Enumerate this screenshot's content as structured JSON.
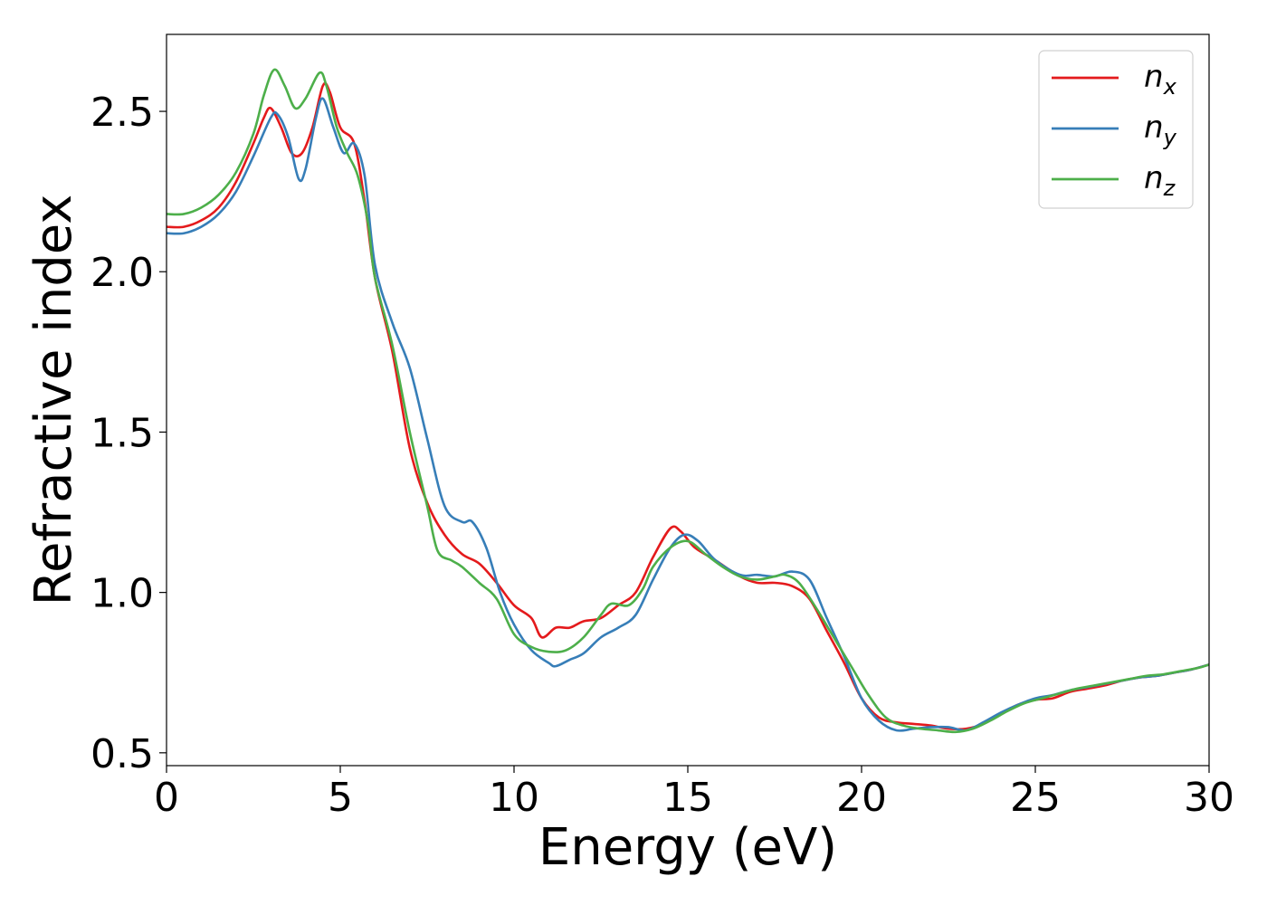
{
  "chart_data": {
    "type": "line",
    "title": "",
    "xlabel": "Energy (eV)",
    "ylabel": "Refractive index",
    "xlim": [
      0,
      30
    ],
    "ylim": [
      0.46,
      2.74
    ],
    "xticks": [
      0,
      5,
      10,
      15,
      20,
      25,
      30
    ],
    "xtick_labels": [
      "0",
      "5",
      "10",
      "15",
      "20",
      "25",
      "30"
    ],
    "yticks": [
      0.5,
      1.0,
      1.5,
      2.0,
      2.5
    ],
    "ytick_labels": [
      "0.5",
      "1.0",
      "1.5",
      "2.0",
      "2.5"
    ],
    "grid": false,
    "legend_position": "top-right",
    "series": [
      {
        "name": "n_x",
        "legend_main": "n",
        "legend_sub": "x",
        "color": "#e41a1c",
        "points": [
          [
            0,
            2.14
          ],
          [
            0.5,
            2.14
          ],
          [
            1,
            2.16
          ],
          [
            1.5,
            2.2
          ],
          [
            2,
            2.28
          ],
          [
            2.5,
            2.4
          ],
          [
            2.8,
            2.48
          ],
          [
            3.0,
            2.51
          ],
          [
            3.3,
            2.45
          ],
          [
            3.6,
            2.37
          ],
          [
            3.9,
            2.37
          ],
          [
            4.2,
            2.45
          ],
          [
            4.5,
            2.58
          ],
          [
            4.7,
            2.56
          ],
          [
            5.0,
            2.45
          ],
          [
            5.4,
            2.4
          ],
          [
            5.7,
            2.22
          ],
          [
            6.0,
            1.98
          ],
          [
            6.5,
            1.75
          ],
          [
            7.0,
            1.45
          ],
          [
            7.5,
            1.28
          ],
          [
            8.0,
            1.18
          ],
          [
            8.5,
            1.12
          ],
          [
            9.0,
            1.09
          ],
          [
            9.5,
            1.03
          ],
          [
            10.0,
            0.96
          ],
          [
            10.5,
            0.92
          ],
          [
            10.8,
            0.86
          ],
          [
            11.2,
            0.89
          ],
          [
            11.6,
            0.89
          ],
          [
            12.0,
            0.91
          ],
          [
            12.5,
            0.92
          ],
          [
            13.0,
            0.96
          ],
          [
            13.5,
            1.0
          ],
          [
            14.0,
            1.11
          ],
          [
            14.5,
            1.2
          ],
          [
            14.8,
            1.19
          ],
          [
            15.2,
            1.14
          ],
          [
            15.8,
            1.1
          ],
          [
            16.5,
            1.05
          ],
          [
            17.0,
            1.03
          ],
          [
            17.5,
            1.03
          ],
          [
            18.0,
            1.02
          ],
          [
            18.5,
            0.98
          ],
          [
            19.0,
            0.88
          ],
          [
            19.5,
            0.78
          ],
          [
            20.0,
            0.67
          ],
          [
            20.5,
            0.61
          ],
          [
            21.0,
            0.595
          ],
          [
            21.5,
            0.59
          ],
          [
            22.0,
            0.585
          ],
          [
            22.5,
            0.575
          ],
          [
            23.0,
            0.575
          ],
          [
            23.5,
            0.59
          ],
          [
            24.0,
            0.62
          ],
          [
            24.5,
            0.65
          ],
          [
            25.0,
            0.665
          ],
          [
            25.5,
            0.67
          ],
          [
            26.0,
            0.69
          ],
          [
            26.5,
            0.7
          ],
          [
            27.0,
            0.71
          ],
          [
            27.5,
            0.725
          ],
          [
            28.0,
            0.735
          ],
          [
            28.5,
            0.74
          ],
          [
            29.0,
            0.75
          ],
          [
            29.5,
            0.76
          ],
          [
            30.0,
            0.775
          ]
        ]
      },
      {
        "name": "n_y",
        "legend_main": "n",
        "legend_sub": "y",
        "color": "#377eb8",
        "points": [
          [
            0,
            2.12
          ],
          [
            0.5,
            2.12
          ],
          [
            1,
            2.14
          ],
          [
            1.5,
            2.18
          ],
          [
            2,
            2.25
          ],
          [
            2.5,
            2.36
          ],
          [
            3.0,
            2.48
          ],
          [
            3.2,
            2.49
          ],
          [
            3.5,
            2.42
          ],
          [
            3.8,
            2.29
          ],
          [
            4.0,
            2.32
          ],
          [
            4.3,
            2.48
          ],
          [
            4.5,
            2.54
          ],
          [
            4.8,
            2.45
          ],
          [
            5.1,
            2.37
          ],
          [
            5.4,
            2.4
          ],
          [
            5.7,
            2.3
          ],
          [
            6.0,
            2.02
          ],
          [
            6.5,
            1.84
          ],
          [
            7.0,
            1.7
          ],
          [
            7.5,
            1.48
          ],
          [
            8.0,
            1.27
          ],
          [
            8.5,
            1.22
          ],
          [
            8.8,
            1.22
          ],
          [
            9.2,
            1.14
          ],
          [
            9.6,
            1.0
          ],
          [
            10.0,
            0.9
          ],
          [
            10.5,
            0.82
          ],
          [
            11.0,
            0.78
          ],
          [
            11.2,
            0.77
          ],
          [
            11.6,
            0.79
          ],
          [
            12.0,
            0.81
          ],
          [
            12.5,
            0.86
          ],
          [
            13.0,
            0.89
          ],
          [
            13.5,
            0.93
          ],
          [
            14.0,
            1.04
          ],
          [
            14.5,
            1.14
          ],
          [
            14.9,
            1.18
          ],
          [
            15.3,
            1.16
          ],
          [
            15.8,
            1.1
          ],
          [
            16.5,
            1.055
          ],
          [
            17.0,
            1.055
          ],
          [
            17.5,
            1.05
          ],
          [
            18.0,
            1.065
          ],
          [
            18.5,
            1.04
          ],
          [
            19.0,
            0.92
          ],
          [
            19.5,
            0.8
          ],
          [
            20.0,
            0.67
          ],
          [
            20.5,
            0.6
          ],
          [
            21.0,
            0.57
          ],
          [
            21.5,
            0.575
          ],
          [
            22.0,
            0.58
          ],
          [
            22.5,
            0.58
          ],
          [
            23.0,
            0.57
          ],
          [
            23.5,
            0.595
          ],
          [
            24.0,
            0.625
          ],
          [
            24.5,
            0.65
          ],
          [
            25.0,
            0.67
          ],
          [
            25.5,
            0.68
          ],
          [
            26.0,
            0.695
          ],
          [
            26.5,
            0.705
          ],
          [
            27.0,
            0.715
          ],
          [
            27.5,
            0.725
          ],
          [
            28.0,
            0.735
          ],
          [
            28.5,
            0.74
          ],
          [
            29.0,
            0.75
          ],
          [
            29.5,
            0.76
          ],
          [
            30.0,
            0.775
          ]
        ]
      },
      {
        "name": "n_z",
        "legend_main": "n",
        "legend_sub": "z",
        "color": "#4daf4a",
        "points": [
          [
            0,
            2.18
          ],
          [
            0.5,
            2.18
          ],
          [
            1,
            2.2
          ],
          [
            1.5,
            2.24
          ],
          [
            2,
            2.31
          ],
          [
            2.5,
            2.43
          ],
          [
            2.8,
            2.55
          ],
          [
            3.1,
            2.63
          ],
          [
            3.4,
            2.58
          ],
          [
            3.7,
            2.51
          ],
          [
            4.0,
            2.54
          ],
          [
            4.4,
            2.62
          ],
          [
            4.6,
            2.58
          ],
          [
            4.9,
            2.45
          ],
          [
            5.2,
            2.37
          ],
          [
            5.5,
            2.3
          ],
          [
            5.8,
            2.15
          ],
          [
            6.0,
            1.98
          ],
          [
            6.5,
            1.77
          ],
          [
            7.0,
            1.5
          ],
          [
            7.5,
            1.27
          ],
          [
            7.8,
            1.13
          ],
          [
            8.2,
            1.1
          ],
          [
            8.5,
            1.08
          ],
          [
            9.0,
            1.03
          ],
          [
            9.5,
            0.98
          ],
          [
            10.0,
            0.87
          ],
          [
            10.5,
            0.83
          ],
          [
            11.0,
            0.815
          ],
          [
            11.5,
            0.82
          ],
          [
            12.0,
            0.86
          ],
          [
            12.5,
            0.93
          ],
          [
            12.8,
            0.965
          ],
          [
            13.3,
            0.96
          ],
          [
            13.7,
            1.01
          ],
          [
            14.0,
            1.08
          ],
          [
            14.5,
            1.14
          ],
          [
            15.0,
            1.16
          ],
          [
            15.5,
            1.12
          ],
          [
            16.0,
            1.08
          ],
          [
            16.5,
            1.05
          ],
          [
            17.0,
            1.04
          ],
          [
            17.5,
            1.05
          ],
          [
            17.8,
            1.055
          ],
          [
            18.2,
            1.03
          ],
          [
            18.7,
            0.95
          ],
          [
            19.2,
            0.86
          ],
          [
            19.7,
            0.77
          ],
          [
            20.2,
            0.68
          ],
          [
            20.7,
            0.61
          ],
          [
            21.2,
            0.585
          ],
          [
            21.7,
            0.575
          ],
          [
            22.2,
            0.57
          ],
          [
            22.7,
            0.565
          ],
          [
            23.2,
            0.575
          ],
          [
            23.7,
            0.6
          ],
          [
            24.2,
            0.63
          ],
          [
            24.7,
            0.655
          ],
          [
            25.2,
            0.67
          ],
          [
            25.7,
            0.685
          ],
          [
            26.2,
            0.7
          ],
          [
            26.7,
            0.71
          ],
          [
            27.2,
            0.72
          ],
          [
            27.7,
            0.73
          ],
          [
            28.2,
            0.74
          ],
          [
            28.7,
            0.745
          ],
          [
            29.2,
            0.755
          ],
          [
            29.7,
            0.765
          ],
          [
            30.0,
            0.775
          ]
        ]
      }
    ]
  }
}
